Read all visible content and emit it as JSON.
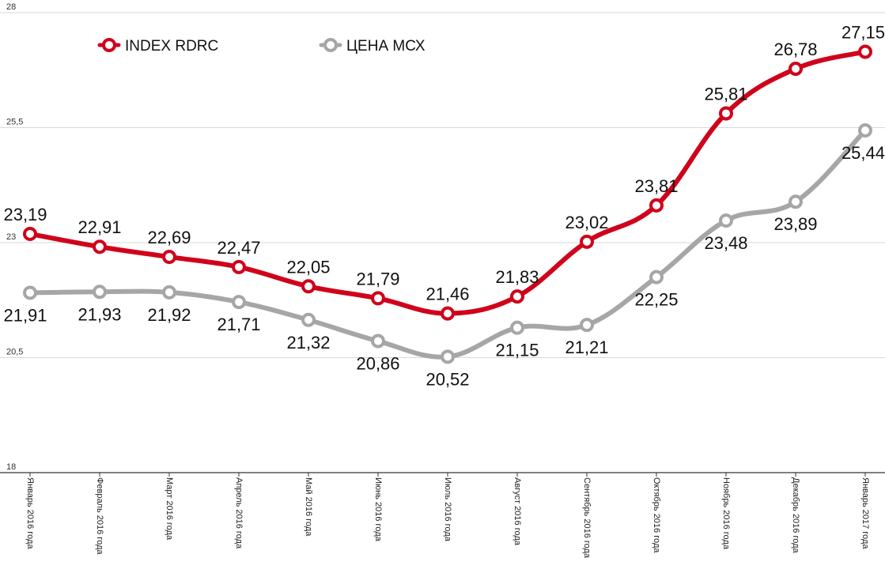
{
  "chart_data": {
    "type": "line",
    "categories": [
      "Январь 2016 года",
      "Февраль 2016 года",
      "Март 2016 года",
      "Апрель 2016 года",
      "Май 2016 года",
      "Июнь 2016 года",
      "Июль 2016 года",
      "Август 2016 года",
      "Сентябрь 2016 года",
      "Октябрь 2016 года",
      "Ноябрь 2016 года",
      "Декабрь 2016 года",
      "Январь 2017 года"
    ],
    "series": [
      {
        "name": "INDEX RDRC",
        "color": "#d0021b",
        "values": [
          23.19,
          22.91,
          22.69,
          22.47,
          22.05,
          21.79,
          21.46,
          21.83,
          23.02,
          23.81,
          25.81,
          26.78,
          27.15
        ],
        "labels": [
          "23,19",
          "22,91",
          "22,69",
          "22,47",
          "22,05",
          "21,79",
          "21,46",
          "21,83",
          "23,02",
          "23,81",
          "25,81",
          "26,78",
          "27,15"
        ]
      },
      {
        "name": "ЦЕНА МСХ",
        "color": "#a6a6a6",
        "values": [
          21.91,
          21.93,
          21.92,
          21.71,
          21.32,
          20.86,
          20.52,
          21.15,
          21.21,
          22.25,
          23.48,
          23.89,
          25.44
        ],
        "labels": [
          "21,91",
          "21,93",
          "21,92",
          "21,71",
          "21,32",
          "20,86",
          "20,52",
          "21,15",
          "21,21",
          "22,25",
          "23,48",
          "23,89",
          "25,44"
        ]
      }
    ],
    "yticks": [
      18,
      20.5,
      23,
      25.5,
      28
    ],
    "ytick_labels": [
      "18",
      "20,5",
      "23",
      "25,5",
      "28"
    ],
    "ylim": [
      18,
      28
    ],
    "grid": true,
    "legend": "top-left",
    "title": "",
    "xlabel": "",
    "ylabel": ""
  }
}
